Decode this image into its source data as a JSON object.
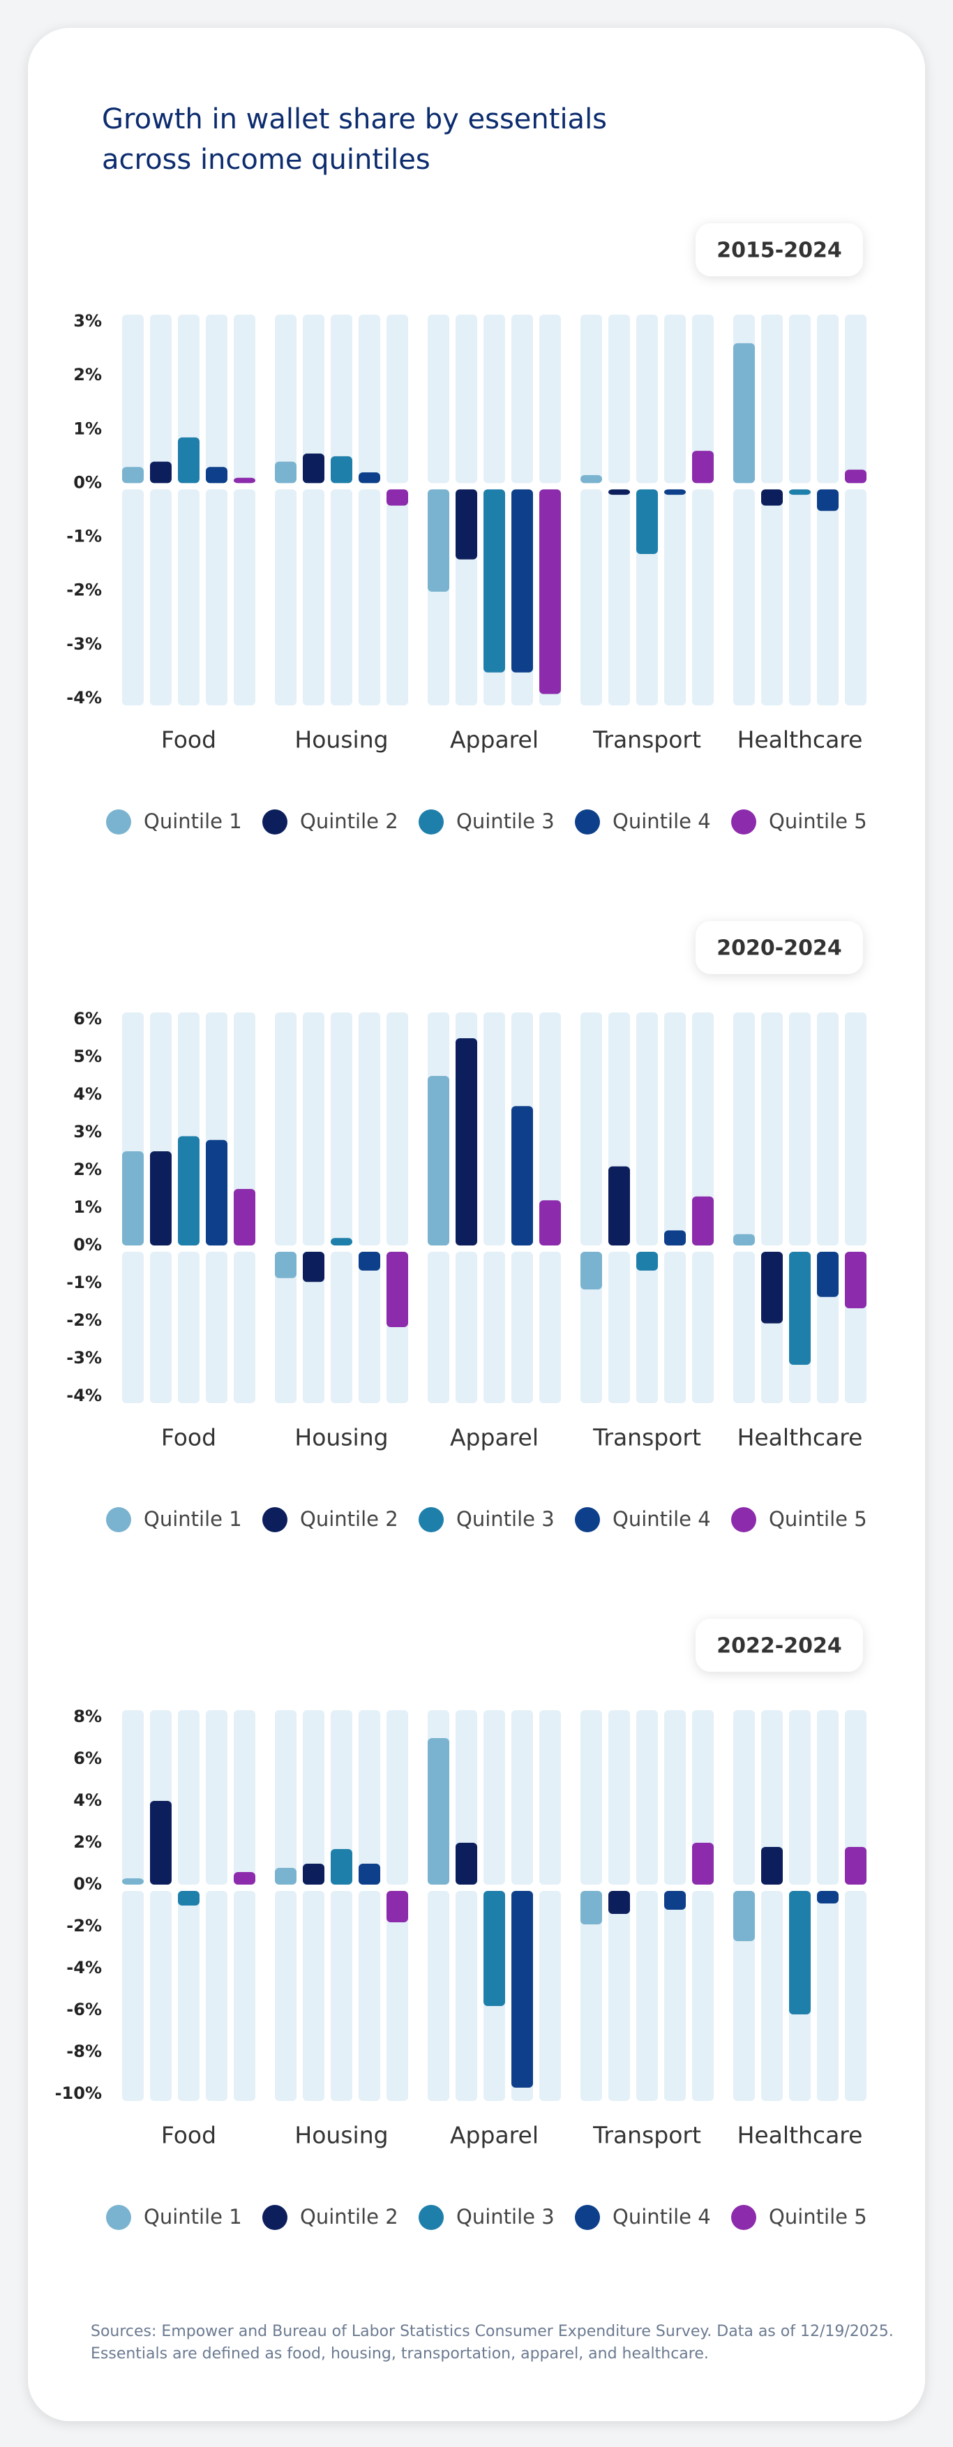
{
  "title": "Growth in wallet share by essentials across income quintiles",
  "chart_data": [
    {
      "type": "bar",
      "subtitle": "2015-2024",
      "categories": [
        "Food",
        "Housing",
        "Apparel",
        "Transport",
        "Healthcare"
      ],
      "series": [
        {
          "name": "Quintile 1",
          "color": "#7ab3cf",
          "values": [
            0.3,
            0.4,
            -1.9,
            0.15,
            2.6
          ]
        },
        {
          "name": "Quintile 2",
          "color": "#0c1f5c",
          "values": [
            0.4,
            0.55,
            -1.3,
            -0.1,
            -0.3
          ]
        },
        {
          "name": "Quintile 3",
          "color": "#1f7fab",
          "values": [
            0.85,
            0.5,
            -3.4,
            -1.2,
            -0.1
          ]
        },
        {
          "name": "Quintile 4",
          "color": "#0d3f8a",
          "values": [
            0.3,
            0.2,
            -3.4,
            -0.1,
            -0.4
          ]
        },
        {
          "name": "Quintile 5",
          "color": "#8c2bab",
          "values": [
            0.1,
            -0.3,
            -3.8,
            0.6,
            0.25
          ]
        }
      ],
      "ylim": [
        -4,
        3
      ],
      "yticks": [
        {
          "value": -4,
          "label": "-4%"
        },
        {
          "value": -3,
          "label": "-3%"
        },
        {
          "value": -2,
          "label": "-2%"
        },
        {
          "value": -1,
          "label": "-1%"
        },
        {
          "value": 0,
          "label": "0%"
        },
        {
          "value": 1,
          "label": "1%"
        },
        {
          "value": 2,
          "label": "2%"
        },
        {
          "value": 3,
          "label": "3%"
        }
      ]
    },
    {
      "type": "bar",
      "subtitle": "2020-2024",
      "categories": [
        "Food",
        "Housing",
        "Apparel",
        "Transport",
        "Healthcare"
      ],
      "series": [
        {
          "name": "Quintile 1",
          "color": "#7ab3cf",
          "values": [
            2.5,
            -0.7,
            4.5,
            -1.0,
            0.3
          ]
        },
        {
          "name": "Quintile 2",
          "color": "#0c1f5c",
          "values": [
            2.5,
            -0.8,
            5.5,
            2.1,
            -1.9
          ]
        },
        {
          "name": "Quintile 3",
          "color": "#1f7fab",
          "values": [
            2.9,
            0.2,
            0,
            -0.5,
            -3.0
          ]
        },
        {
          "name": "Quintile 4",
          "color": "#0d3f8a",
          "values": [
            2.8,
            -0.5,
            3.7,
            0.4,
            -1.2
          ]
        },
        {
          "name": "Quintile 5",
          "color": "#8c2bab",
          "values": [
            1.5,
            -2.0,
            1.2,
            1.3,
            -1.5
          ]
        }
      ],
      "ylim": [
        -4,
        6
      ],
      "yticks": [
        {
          "value": -4,
          "label": "-4%"
        },
        {
          "value": -3,
          "label": "-3%"
        },
        {
          "value": -2,
          "label": "-2%"
        },
        {
          "value": -1,
          "label": "-1%"
        },
        {
          "value": 0,
          "label": "0%"
        },
        {
          "value": 1,
          "label": "1%"
        },
        {
          "value": 2,
          "label": "2%"
        },
        {
          "value": 3,
          "label": "3%"
        },
        {
          "value": 4,
          "label": "4%"
        },
        {
          "value": 5,
          "label": "5%"
        },
        {
          "value": 6,
          "label": "6%"
        }
      ]
    },
    {
      "type": "bar",
      "subtitle": "2022-2024",
      "categories": [
        "Food",
        "Housing",
        "Apparel",
        "Transport",
        "Healthcare"
      ],
      "series": [
        {
          "name": "Quintile 1",
          "color": "#7ab3cf",
          "values": [
            0.3,
            0.8,
            7.0,
            -1.6,
            -2.4
          ]
        },
        {
          "name": "Quintile 2",
          "color": "#0c1f5c",
          "values": [
            4.0,
            1.0,
            2.0,
            -1.1,
            1.8
          ]
        },
        {
          "name": "Quintile 3",
          "color": "#1f7fab",
          "values": [
            -0.7,
            1.7,
            -5.5,
            0,
            -5.9
          ]
        },
        {
          "name": "Quintile 4",
          "color": "#0d3f8a",
          "values": [
            0,
            1.0,
            -9.4,
            -0.9,
            -0.6
          ]
        },
        {
          "name": "Quintile 5",
          "color": "#8c2bab",
          "values": [
            0.6,
            -1.5,
            0,
            2.0,
            1.8
          ]
        }
      ],
      "ylim": [
        -10,
        8
      ],
      "yticks": [
        {
          "value": -10,
          "label": "-10%"
        },
        {
          "value": -8,
          "label": "-8%"
        },
        {
          "value": -6,
          "label": "-6%"
        },
        {
          "value": -4,
          "label": "-4%"
        },
        {
          "value": -2,
          "label": "-2%"
        },
        {
          "value": 0,
          "label": "0%"
        },
        {
          "value": 2,
          "label": "2%"
        },
        {
          "value": 4,
          "label": "4%"
        },
        {
          "value": 6,
          "label": "6%"
        },
        {
          "value": 8,
          "label": "8%"
        }
      ]
    }
  ],
  "footnote": "Sources: Empower and Bureau of Labor Statistics Consumer Expenditure Survey. Data as of 12/19/2025. Essentials are defined as food, housing, transportation, apparel, and healthcare."
}
